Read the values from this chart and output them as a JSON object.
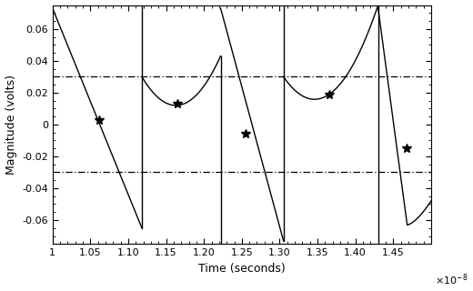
{
  "xlim": [
    1e-08,
    1.5e-08
  ],
  "ylim": [
    -0.075,
    0.075
  ],
  "xticks": [
    1e-08,
    1.05e-08,
    1.1e-08,
    1.15e-08,
    1.2e-08,
    1.25e-08,
    1.3e-08,
    1.35e-08,
    1.4e-08,
    1.45e-08
  ],
  "yticks": [
    -0.06,
    -0.04,
    -0.02,
    0,
    0.02,
    0.04,
    0.06
  ],
  "xlabel": "Time (seconds)",
  "ylabel": "Magnitude (volts)",
  "hline_pos": 0.03,
  "hline_neg": -0.03,
  "star_points": [
    [
      1.062e-08,
      0.003
    ],
    [
      1.165e-08,
      0.013
    ],
    [
      1.255e-08,
      -0.006
    ],
    [
      1.365e-08,
      0.019
    ],
    [
      1.468e-08,
      -0.015
    ]
  ],
  "line_color": "black",
  "background_color": "white"
}
